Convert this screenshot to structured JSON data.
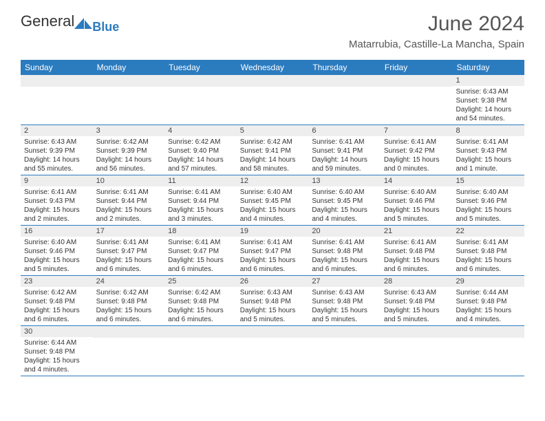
{
  "logo": {
    "text1": "General",
    "text2": "Blue",
    "shape_color": "#2b7bbf"
  },
  "title": "June 2024",
  "location": "Matarrubia, Castille-La Mancha, Spain",
  "header_bg": "#2b7bbf",
  "header_text_color": "#ffffff",
  "daynum_bg": "#eeeeee",
  "cell_border": "#2b7bbf",
  "dayheads": [
    "Sunday",
    "Monday",
    "Tuesday",
    "Wednesday",
    "Thursday",
    "Friday",
    "Saturday"
  ],
  "weeks": [
    [
      {
        "n": "",
        "sr": "",
        "ss": "",
        "dl": ""
      },
      {
        "n": "",
        "sr": "",
        "ss": "",
        "dl": ""
      },
      {
        "n": "",
        "sr": "",
        "ss": "",
        "dl": ""
      },
      {
        "n": "",
        "sr": "",
        "ss": "",
        "dl": ""
      },
      {
        "n": "",
        "sr": "",
        "ss": "",
        "dl": ""
      },
      {
        "n": "",
        "sr": "",
        "ss": "",
        "dl": ""
      },
      {
        "n": "1",
        "sr": "Sunrise: 6:43 AM",
        "ss": "Sunset: 9:38 PM",
        "dl": "Daylight: 14 hours and 54 minutes."
      }
    ],
    [
      {
        "n": "2",
        "sr": "Sunrise: 6:43 AM",
        "ss": "Sunset: 9:39 PM",
        "dl": "Daylight: 14 hours and 55 minutes."
      },
      {
        "n": "3",
        "sr": "Sunrise: 6:42 AM",
        "ss": "Sunset: 9:39 PM",
        "dl": "Daylight: 14 hours and 56 minutes."
      },
      {
        "n": "4",
        "sr": "Sunrise: 6:42 AM",
        "ss": "Sunset: 9:40 PM",
        "dl": "Daylight: 14 hours and 57 minutes."
      },
      {
        "n": "5",
        "sr": "Sunrise: 6:42 AM",
        "ss": "Sunset: 9:41 PM",
        "dl": "Daylight: 14 hours and 58 minutes."
      },
      {
        "n": "6",
        "sr": "Sunrise: 6:41 AM",
        "ss": "Sunset: 9:41 PM",
        "dl": "Daylight: 14 hours and 59 minutes."
      },
      {
        "n": "7",
        "sr": "Sunrise: 6:41 AM",
        "ss": "Sunset: 9:42 PM",
        "dl": "Daylight: 15 hours and 0 minutes."
      },
      {
        "n": "8",
        "sr": "Sunrise: 6:41 AM",
        "ss": "Sunset: 9:43 PM",
        "dl": "Daylight: 15 hours and 1 minute."
      }
    ],
    [
      {
        "n": "9",
        "sr": "Sunrise: 6:41 AM",
        "ss": "Sunset: 9:43 PM",
        "dl": "Daylight: 15 hours and 2 minutes."
      },
      {
        "n": "10",
        "sr": "Sunrise: 6:41 AM",
        "ss": "Sunset: 9:44 PM",
        "dl": "Daylight: 15 hours and 2 minutes."
      },
      {
        "n": "11",
        "sr": "Sunrise: 6:41 AM",
        "ss": "Sunset: 9:44 PM",
        "dl": "Daylight: 15 hours and 3 minutes."
      },
      {
        "n": "12",
        "sr": "Sunrise: 6:40 AM",
        "ss": "Sunset: 9:45 PM",
        "dl": "Daylight: 15 hours and 4 minutes."
      },
      {
        "n": "13",
        "sr": "Sunrise: 6:40 AM",
        "ss": "Sunset: 9:45 PM",
        "dl": "Daylight: 15 hours and 4 minutes."
      },
      {
        "n": "14",
        "sr": "Sunrise: 6:40 AM",
        "ss": "Sunset: 9:46 PM",
        "dl": "Daylight: 15 hours and 5 minutes."
      },
      {
        "n": "15",
        "sr": "Sunrise: 6:40 AM",
        "ss": "Sunset: 9:46 PM",
        "dl": "Daylight: 15 hours and 5 minutes."
      }
    ],
    [
      {
        "n": "16",
        "sr": "Sunrise: 6:40 AM",
        "ss": "Sunset: 9:46 PM",
        "dl": "Daylight: 15 hours and 5 minutes."
      },
      {
        "n": "17",
        "sr": "Sunrise: 6:41 AM",
        "ss": "Sunset: 9:47 PM",
        "dl": "Daylight: 15 hours and 6 minutes."
      },
      {
        "n": "18",
        "sr": "Sunrise: 6:41 AM",
        "ss": "Sunset: 9:47 PM",
        "dl": "Daylight: 15 hours and 6 minutes."
      },
      {
        "n": "19",
        "sr": "Sunrise: 6:41 AM",
        "ss": "Sunset: 9:47 PM",
        "dl": "Daylight: 15 hours and 6 minutes."
      },
      {
        "n": "20",
        "sr": "Sunrise: 6:41 AM",
        "ss": "Sunset: 9:48 PM",
        "dl": "Daylight: 15 hours and 6 minutes."
      },
      {
        "n": "21",
        "sr": "Sunrise: 6:41 AM",
        "ss": "Sunset: 9:48 PM",
        "dl": "Daylight: 15 hours and 6 minutes."
      },
      {
        "n": "22",
        "sr": "Sunrise: 6:41 AM",
        "ss": "Sunset: 9:48 PM",
        "dl": "Daylight: 15 hours and 6 minutes."
      }
    ],
    [
      {
        "n": "23",
        "sr": "Sunrise: 6:42 AM",
        "ss": "Sunset: 9:48 PM",
        "dl": "Daylight: 15 hours and 6 minutes."
      },
      {
        "n": "24",
        "sr": "Sunrise: 6:42 AM",
        "ss": "Sunset: 9:48 PM",
        "dl": "Daylight: 15 hours and 6 minutes."
      },
      {
        "n": "25",
        "sr": "Sunrise: 6:42 AM",
        "ss": "Sunset: 9:48 PM",
        "dl": "Daylight: 15 hours and 6 minutes."
      },
      {
        "n": "26",
        "sr": "Sunrise: 6:43 AM",
        "ss": "Sunset: 9:48 PM",
        "dl": "Daylight: 15 hours and 5 minutes."
      },
      {
        "n": "27",
        "sr": "Sunrise: 6:43 AM",
        "ss": "Sunset: 9:48 PM",
        "dl": "Daylight: 15 hours and 5 minutes."
      },
      {
        "n": "28",
        "sr": "Sunrise: 6:43 AM",
        "ss": "Sunset: 9:48 PM",
        "dl": "Daylight: 15 hours and 5 minutes."
      },
      {
        "n": "29",
        "sr": "Sunrise: 6:44 AM",
        "ss": "Sunset: 9:48 PM",
        "dl": "Daylight: 15 hours and 4 minutes."
      }
    ],
    [
      {
        "n": "30",
        "sr": "Sunrise: 6:44 AM",
        "ss": "Sunset: 9:48 PM",
        "dl": "Daylight: 15 hours and 4 minutes."
      },
      {
        "n": "",
        "sr": "",
        "ss": "",
        "dl": ""
      },
      {
        "n": "",
        "sr": "",
        "ss": "",
        "dl": ""
      },
      {
        "n": "",
        "sr": "",
        "ss": "",
        "dl": ""
      },
      {
        "n": "",
        "sr": "",
        "ss": "",
        "dl": ""
      },
      {
        "n": "",
        "sr": "",
        "ss": "",
        "dl": ""
      },
      {
        "n": "",
        "sr": "",
        "ss": "",
        "dl": ""
      }
    ]
  ]
}
